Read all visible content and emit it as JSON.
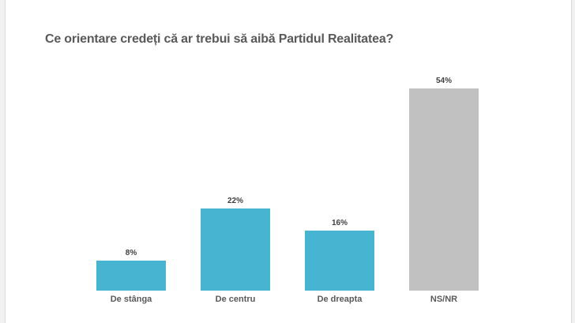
{
  "title": "Ce orientare credeți că ar trebui să aibă Partidul Realitatea?",
  "colors": {
    "accent_teal": "#47b5d2",
    "neutral_gray": "#c1c1c1",
    "title_text": "#595959",
    "value_label_text": "#3f3f3f",
    "page_background": "#f1f1f1",
    "card_background": "#ffffff"
  },
  "chart_data": {
    "type": "bar",
    "title": "Ce orientare credeți că ar trebui să aibă Partidul Realitatea?",
    "categories": [
      "De stânga",
      "De centru",
      "De dreapta",
      "NS/NR"
    ],
    "values": [
      8,
      22,
      16,
      54
    ],
    "value_suffix": "%",
    "bar_colors": [
      "#47b5d2",
      "#47b5d2",
      "#47b5d2",
      "#c1c1c1"
    ],
    "xlabel": "",
    "ylabel": "",
    "ylim": [
      0,
      60
    ],
    "grid": false,
    "legend": false,
    "value_labels_position": "above-bars"
  }
}
